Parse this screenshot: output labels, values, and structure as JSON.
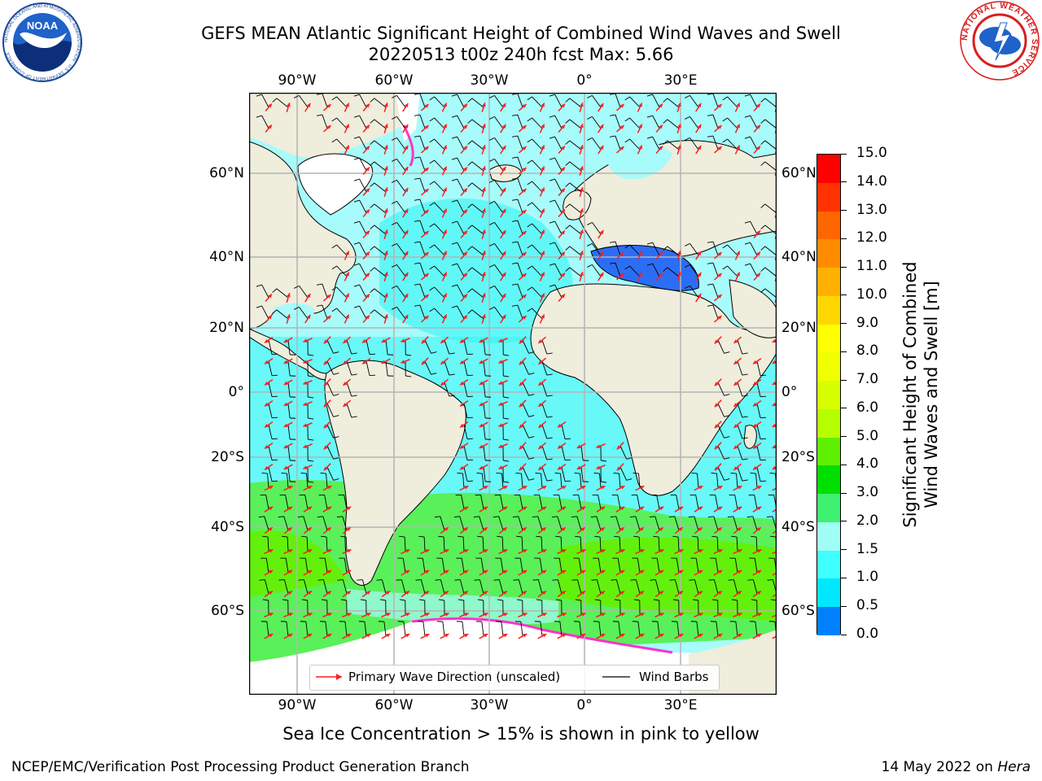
{
  "title": {
    "line1": "GEFS MEAN Atlantic Significant Height of Combined Wind Waves and Swell",
    "line2": "20220513 t00z 240h fcst   Max: 5.66"
  },
  "map": {
    "longitude_labels": [
      "90°W",
      "60°W",
      "30°W",
      "0°",
      "30°E"
    ],
    "latitude_labels": [
      "60°N",
      "40°N",
      "20°N",
      "0°",
      "20°S",
      "40°S",
      "60°S"
    ],
    "colors": {
      "land": "#efeddc",
      "ocean_light": "#a7fbfb",
      "ocean_cyan": "#34f5f5",
      "ocean_blue": "#2c6df5",
      "ocean_green": "#5af05a",
      "wave_arrow": "#ff1e1e",
      "barb": "#000000",
      "grid": "#b4b4b4",
      "ice": "#ffffff",
      "ice_edge": "#ff33cc"
    }
  },
  "legend": {
    "wave_direction": "Primary Wave Direction (unscaled)",
    "wind_barbs": "Wind Barbs"
  },
  "colorbar": {
    "label_line1": "Significant Height of Combined",
    "label_line2": "Wind Waves and Swell [m]",
    "ticks": [
      "15.0",
      "14.0",
      "13.0",
      "12.0",
      "11.0",
      "10.0",
      "9.0",
      "8.0",
      "7.0",
      "6.0",
      "5.0",
      "4.0",
      "3.0",
      "2.0",
      "1.5",
      "1.0",
      "0.5",
      "0.0"
    ],
    "colors": [
      "#ff0000",
      "#ff3300",
      "#ff6600",
      "#ff8c00",
      "#ffb000",
      "#ffd700",
      "#ffff00",
      "#f0ff00",
      "#d8ff00",
      "#b5ff00",
      "#5ef000",
      "#00e000",
      "#40f070",
      "#a0fff5",
      "#40ffff",
      "#00e8ff",
      "#0080ff",
      "#0000ff"
    ]
  },
  "subtitle": "Sea Ice Concentration > 15% is shown in pink to yellow",
  "footer": {
    "left": "NCEP/EMC/Verification Post Processing Product Generation Branch",
    "right_prefix": "14 May 2022 on ",
    "right_machine": "Hera"
  },
  "logos": {
    "noaa": "NOAA",
    "noaa_ring": "NATIONAL OCEANIC AND ATMOSPHERIC ADMINISTRATION · U.S. DEPARTMENT OF COMMERCE",
    "nws_ring": "NATIONAL WEATHER SERVICE"
  }
}
